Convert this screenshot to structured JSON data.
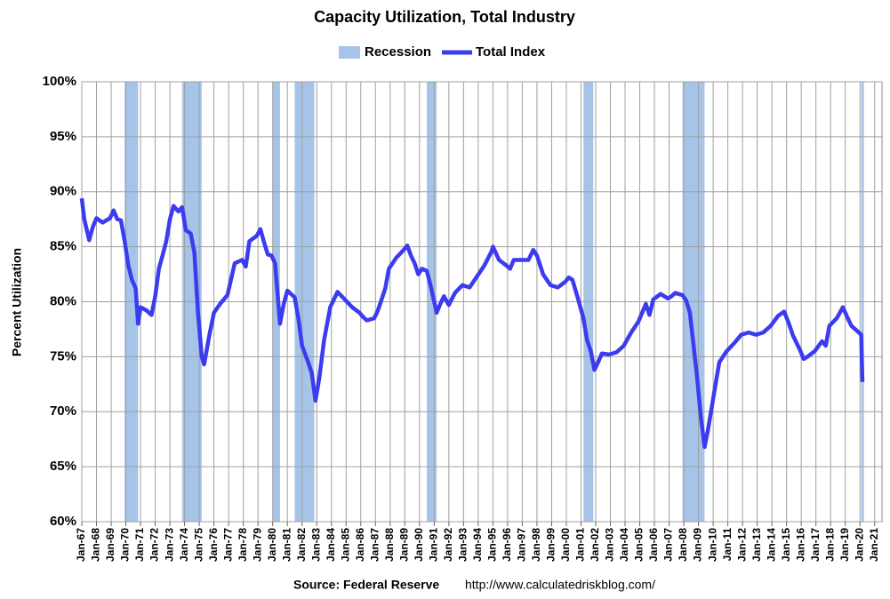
{
  "chart_data": {
    "type": "line",
    "title": "Capacity Utilization, Total Industry",
    "ylabel": "Percent Utilization",
    "source": "Source: Federal Reserve",
    "url": "http://www.calculatedriskblog.com/",
    "grid": true,
    "legend": "top",
    "recession": {
      "name": "Recession",
      "color": "#a6c3e8",
      "spans": [
        [
          "1969-12",
          "1970-11"
        ],
        [
          "1973-11",
          "1975-03"
        ],
        [
          "1980-01",
          "1980-07"
        ],
        [
          "1981-07",
          "1982-11"
        ],
        [
          "1990-07",
          "1991-03"
        ],
        [
          "2001-03",
          "2001-11"
        ],
        [
          "2007-12",
          "2009-06"
        ],
        [
          "2020-02",
          "2020-04"
        ]
      ]
    },
    "xlim": [
      "1967-01",
      "2021-07"
    ],
    "ylim": [
      60,
      100
    ],
    "yticks": [
      {
        "value": 60,
        "label": "60%"
      },
      {
        "value": 65,
        "label": "65%"
      },
      {
        "value": 70,
        "label": "70%"
      },
      {
        "value": 75,
        "label": "75%"
      },
      {
        "value": 80,
        "label": "80%"
      },
      {
        "value": 85,
        "label": "85%"
      },
      {
        "value": 90,
        "label": "90%"
      },
      {
        "value": 95,
        "label": "95%"
      },
      {
        "value": 100,
        "label": "100%"
      }
    ],
    "xticks": [
      {
        "value": "1967-01",
        "label": "Jan-67"
      },
      {
        "value": "1968-01",
        "label": "Jan-68"
      },
      {
        "value": "1969-01",
        "label": "Jan-69"
      },
      {
        "value": "1970-01",
        "label": "Jan-70"
      },
      {
        "value": "1971-01",
        "label": "Jan-71"
      },
      {
        "value": "1972-01",
        "label": "Jan-72"
      },
      {
        "value": "1973-01",
        "label": "Jan-73"
      },
      {
        "value": "1974-01",
        "label": "Jan-74"
      },
      {
        "value": "1975-01",
        "label": "Jan-75"
      },
      {
        "value": "1976-01",
        "label": "Jan-76"
      },
      {
        "value": "1977-01",
        "label": "Jan-77"
      },
      {
        "value": "1978-01",
        "label": "Jan-78"
      },
      {
        "value": "1979-01",
        "label": "Jan-79"
      },
      {
        "value": "1980-01",
        "label": "Jan-80"
      },
      {
        "value": "1981-01",
        "label": "Jan-81"
      },
      {
        "value": "1982-01",
        "label": "Jan-82"
      },
      {
        "value": "1983-01",
        "label": "Jan-83"
      },
      {
        "value": "1984-01",
        "label": "Jan-84"
      },
      {
        "value": "1985-01",
        "label": "Jan-85"
      },
      {
        "value": "1986-01",
        "label": "Jan-86"
      },
      {
        "value": "1987-01",
        "label": "Jan-87"
      },
      {
        "value": "1988-01",
        "label": "Jan-88"
      },
      {
        "value": "1989-01",
        "label": "Jan-89"
      },
      {
        "value": "1990-01",
        "label": "Jan-90"
      },
      {
        "value": "1991-01",
        "label": "Jan-91"
      },
      {
        "value": "1992-01",
        "label": "Jan-92"
      },
      {
        "value": "1993-01",
        "label": "Jan-93"
      },
      {
        "value": "1994-01",
        "label": "Jan-94"
      },
      {
        "value": "1995-01",
        "label": "Jan-95"
      },
      {
        "value": "1996-01",
        "label": "Jan-96"
      },
      {
        "value": "1997-01",
        "label": "Jan-97"
      },
      {
        "value": "1998-01",
        "label": "Jan-98"
      },
      {
        "value": "1999-01",
        "label": "Jan-99"
      },
      {
        "value": "2000-01",
        "label": "Jan-00"
      },
      {
        "value": "2001-01",
        "label": "Jan-01"
      },
      {
        "value": "2002-01",
        "label": "Jan-02"
      },
      {
        "value": "2003-01",
        "label": "Jan-03"
      },
      {
        "value": "2004-01",
        "label": "Jan-04"
      },
      {
        "value": "2005-01",
        "label": "Jan-05"
      },
      {
        "value": "2006-01",
        "label": "Jan-06"
      },
      {
        "value": "2007-01",
        "label": "Jan-07"
      },
      {
        "value": "2008-01",
        "label": "Jan-08"
      },
      {
        "value": "2009-01",
        "label": "Jan-09"
      },
      {
        "value": "2010-01",
        "label": "Jan-10"
      },
      {
        "value": "2011-01",
        "label": "Jan-11"
      },
      {
        "value": "2012-01",
        "label": "Jan-12"
      },
      {
        "value": "2013-01",
        "label": "Jan-13"
      },
      {
        "value": "2014-01",
        "label": "Jan-14"
      },
      {
        "value": "2015-01",
        "label": "Jan-15"
      },
      {
        "value": "2016-01",
        "label": "Jan-16"
      },
      {
        "value": "2017-01",
        "label": "Jan-17"
      },
      {
        "value": "2018-01",
        "label": "Jan-18"
      },
      {
        "value": "2019-01",
        "label": "Jan-19"
      },
      {
        "value": "2020-01",
        "label": "Jan-20"
      },
      {
        "value": "2021-01",
        "label": "Jan-21"
      }
    ],
    "x": [
      "1967-01",
      "1967-03",
      "1967-07",
      "1967-10",
      "1968-01",
      "1968-06",
      "1968-12",
      "1969-03",
      "1969-06",
      "1969-09",
      "1969-12",
      "1970-03",
      "1970-06",
      "1970-09",
      "1970-11",
      "1971-01",
      "1971-06",
      "1971-10",
      "1972-01",
      "1972-04",
      "1972-07",
      "1972-10",
      "1973-01",
      "1973-04",
      "1973-08",
      "1973-11",
      "1974-02",
      "1974-06",
      "1974-09",
      "1974-12",
      "1975-03",
      "1975-05",
      "1975-09",
      "1976-01",
      "1976-06",
      "1976-12",
      "1977-06",
      "1977-12",
      "1978-03",
      "1978-06",
      "1978-12",
      "1979-03",
      "1979-06",
      "1979-09",
      "1979-12",
      "1980-03",
      "1980-07",
      "1980-10",
      "1981-01",
      "1981-07",
      "1981-10",
      "1982-01",
      "1982-06",
      "1982-09",
      "1982-12",
      "1983-03",
      "1983-07",
      "1983-12",
      "1984-06",
      "1984-12",
      "1985-06",
      "1985-12",
      "1986-03",
      "1986-06",
      "1986-12",
      "1987-03",
      "1987-09",
      "1987-12",
      "1988-06",
      "1988-12",
      "1989-03",
      "1989-06",
      "1989-09",
      "1989-12",
      "1990-03",
      "1990-07",
      "1990-10",
      "1991-03",
      "1991-06",
      "1991-09",
      "1992-01",
      "1992-06",
      "1992-12",
      "1993-06",
      "1993-12",
      "1994-06",
      "1994-12",
      "1995-01",
      "1995-06",
      "1995-12",
      "1996-03",
      "1996-06",
      "1996-12",
      "1997-06",
      "1997-10",
      "1998-01",
      "1998-06",
      "1998-12",
      "1999-06",
      "1999-12",
      "2000-03",
      "2000-06",
      "2000-10",
      "2001-03",
      "2001-06",
      "2001-09",
      "2001-12",
      "2002-03",
      "2002-06",
      "2002-12",
      "2003-06",
      "2003-12",
      "2004-06",
      "2004-12",
      "2005-06",
      "2005-09",
      "2005-12",
      "2006-06",
      "2006-12",
      "2007-03",
      "2007-06",
      "2007-12",
      "2008-03",
      "2008-06",
      "2008-09",
      "2008-12",
      "2009-03",
      "2009-06",
      "2009-09",
      "2009-12",
      "2010-03",
      "2010-06",
      "2010-12",
      "2011-06",
      "2011-12",
      "2012-06",
      "2012-12",
      "2013-06",
      "2013-12",
      "2014-06",
      "2014-11",
      "2015-03",
      "2015-06",
      "2015-12",
      "2016-03",
      "2016-06",
      "2016-12",
      "2017-06",
      "2017-09",
      "2017-12",
      "2018-06",
      "2018-11",
      "2019-03",
      "2019-06",
      "2019-12",
      "2020-02",
      "2020-03"
    ],
    "series": [
      {
        "name": "Total Index",
        "color": "#3b3bf0",
        "values": [
          89.4,
          87.5,
          85.6,
          86.8,
          87.6,
          87.2,
          87.6,
          88.3,
          87.5,
          87.4,
          85.5,
          83.3,
          82.0,
          81.2,
          78.0,
          79.5,
          79.2,
          78.8,
          80.5,
          83,
          84.2,
          85.5,
          87.5,
          88.7,
          88.2,
          88.6,
          86.5,
          86.2,
          84.5,
          79,
          75,
          74.3,
          76.8,
          79,
          79.8,
          80.6,
          83.5,
          83.8,
          83.2,
          85.5,
          86,
          86.6,
          85.4,
          84.3,
          84.2,
          83.5,
          78,
          79.8,
          81,
          80.4,
          78.5,
          76,
          74.5,
          73.5,
          71,
          73,
          76.5,
          79.5,
          80.9,
          80.2,
          79.5,
          79,
          78.6,
          78.3,
          78.5,
          79.2,
          81.2,
          83,
          84,
          84.7,
          85.1,
          84.2,
          83.5,
          82.5,
          83,
          82.8,
          81.5,
          79,
          79.8,
          80.5,
          79.7,
          80.8,
          81.5,
          81.3,
          82.3,
          83.3,
          84.6,
          85,
          83.8,
          83.3,
          83,
          83.8,
          83.8,
          83.8,
          84.7,
          84.2,
          82.5,
          81.5,
          81.3,
          81.8,
          82.2,
          82,
          80.5,
          78.5,
          76.5,
          75.5,
          73.8,
          74.5,
          75.3,
          75.2,
          75.4,
          76,
          77.2,
          78.2,
          79.8,
          78.8,
          80.2,
          80.7,
          80.3,
          80.5,
          80.8,
          80.6,
          80.1,
          79,
          76,
          73,
          69.5,
          66.8,
          68.5,
          70.5,
          72.5,
          74.5,
          75.5,
          76.2,
          77,
          77.2,
          77,
          77.2,
          77.8,
          78.7,
          79.1,
          78,
          77,
          75.6,
          74.8,
          75,
          75.5,
          76.4,
          76,
          77.8,
          78.5,
          79.5,
          78.5,
          77.8,
          77.2,
          77,
          72.7
        ]
      }
    ]
  }
}
